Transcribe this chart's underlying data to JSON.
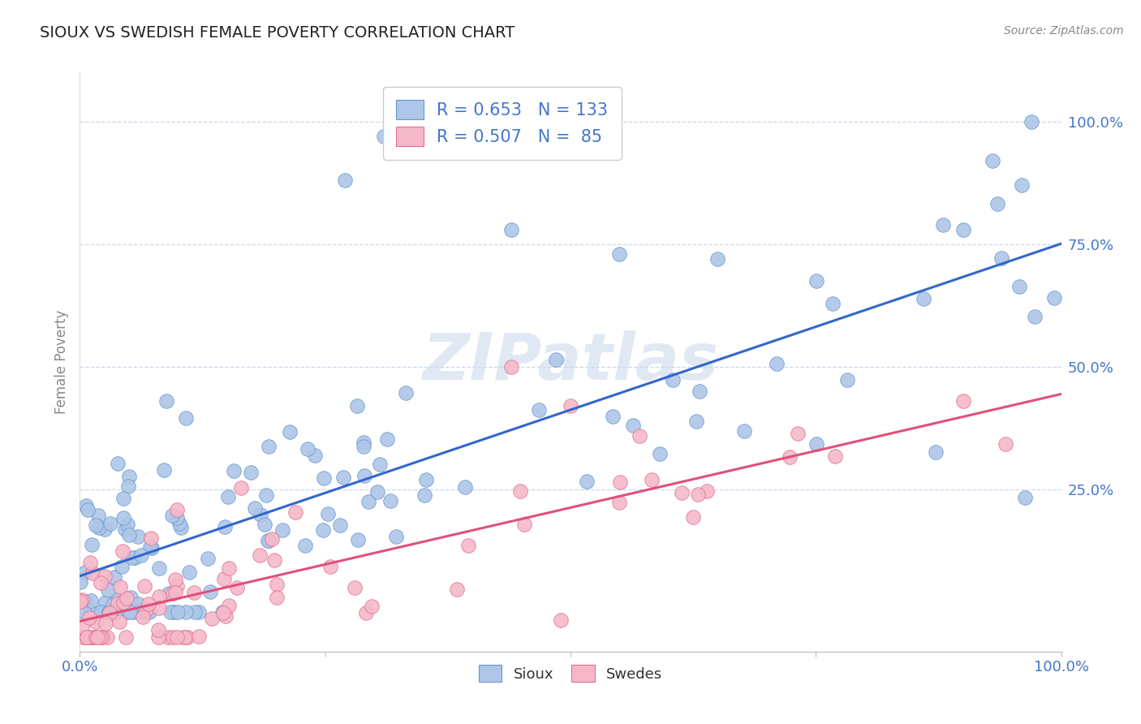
{
  "title": "SIOUX VS SWEDISH FEMALE POVERTY CORRELATION CHART",
  "source_text": "Source: ZipAtlas.com",
  "ylabel": "Female Poverty",
  "sioux_R": 0.653,
  "sioux_N": 133,
  "swedes_R": 0.507,
  "swedes_N": 85,
  "blue_scatter_color": "#aec6e8",
  "blue_edge_color": "#6699cc",
  "blue_line_color": "#3366cc",
  "pink_scatter_color": "#f5b8c8",
  "pink_edge_color": "#e07090",
  "pink_line_color": "#e0507a",
  "legend_label1": "Sioux",
  "legend_label2": "Swedes",
  "background_color": "#ffffff",
  "grid_color": "#c8d8ea",
  "title_color": "#222222",
  "axis_tick_color": "#4477cc",
  "ylabel_color": "#888888",
  "source_color": "#888888",
  "watermark_color": "#c8d8ea",
  "legend_text_color": "#4477cc"
}
